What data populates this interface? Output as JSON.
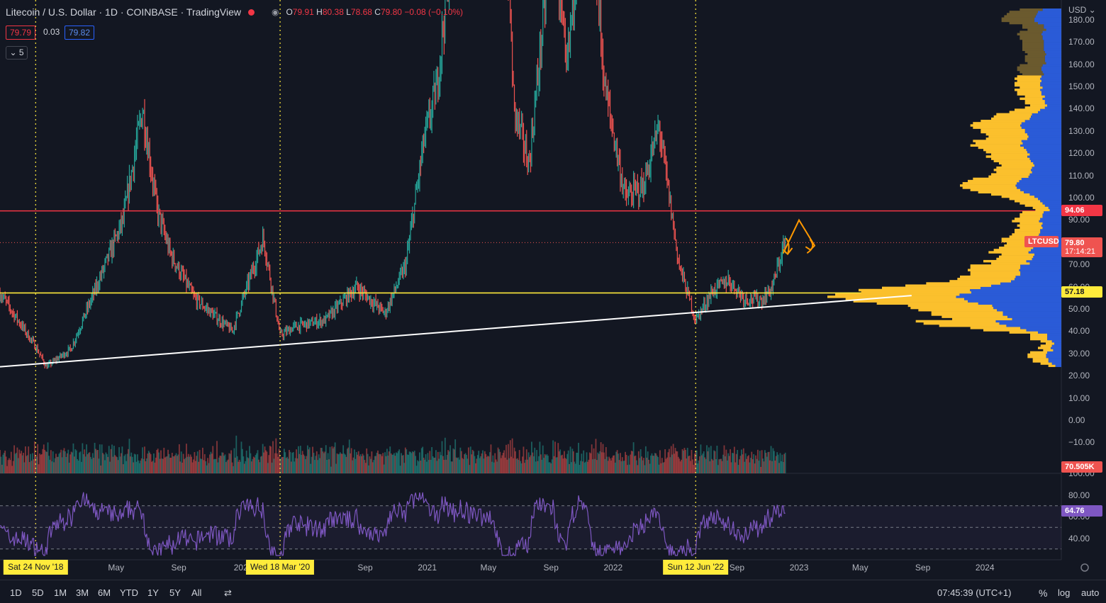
{
  "header": {
    "title": "Litecoin / U.S. Dollar · 1D · COINBASE · TradingView",
    "ohlc": [
      {
        "k": "O",
        "v": "79.91"
      },
      {
        "k": "H",
        "v": "80.38"
      },
      {
        "k": "L",
        "v": "78.68"
      },
      {
        "k": "C",
        "v": "79.80"
      },
      {
        "k": "",
        "v": "−0.08 (−0.10%)"
      }
    ],
    "bid": "79.79",
    "spread": "0.03",
    "ask": "79.82",
    "indicator_count": "5"
  },
  "price_axis": {
    "currency": "USD",
    "ticks": [
      "−10.00",
      "0.00",
      "10.00",
      "20.00",
      "30.00",
      "40.00",
      "50.00",
      "60.00",
      "70.00",
      "80.00",
      "90.00",
      "100.00",
      "110.00",
      "120.00",
      "130.00",
      "140.00",
      "150.00",
      "160.00",
      "170.00",
      "180.00"
    ],
    "resistance_label": "94.06",
    "support_label": "57.18",
    "symbol_label": "LTCUSD",
    "last_price_label": "79.80",
    "countdown": "17:14:21",
    "volume_label": "70.505K"
  },
  "rsi_axis": {
    "ticks": [
      "40.00",
      "60.00",
      "80.00",
      "100.00"
    ],
    "value_label": "64.76"
  },
  "time_axis": {
    "labels": [
      "May",
      "Sep",
      "202",
      "Sep",
      "2021",
      "May",
      "Sep",
      "2022",
      "Sep",
      "2023",
      "May",
      "Sep",
      "2024"
    ],
    "date_markers": [
      "Sat 24 Nov '18",
      "Wed 18 Mar '20",
      "Sun 12 Jun '22"
    ]
  },
  "toolbar": {
    "timeframes": [
      "1D",
      "5D",
      "1M",
      "3M",
      "6M",
      "YTD",
      "1Y",
      "5Y",
      "All"
    ],
    "clock": "07:45:39 (UTC+1)",
    "percent": "%",
    "log": "log",
    "auto": "auto"
  },
  "colors": {
    "background": "#131722",
    "up": "#26a69a",
    "down": "#ef5350",
    "resistance": "#f23645",
    "support": "#ffeb3b",
    "rsi": "#7e57c2",
    "vp_up": "#fbc02d",
    "vp_down": "#2a5bd7",
    "annotation": "#ff9800"
  },
  "chart_data": {
    "type": "candlestick",
    "symbol": "LTCUSD",
    "exchange": "COINBASE",
    "interval": "1D",
    "x_range": [
      "2018-09-15",
      "2024-05-30"
    ],
    "ylim": [
      -14,
      185
    ],
    "key_points": [
      {
        "date": "2018-09-15",
        "close": 57
      },
      {
        "date": "2018-11-24",
        "close": 33
      },
      {
        "date": "2018-12-15",
        "close": 24
      },
      {
        "date": "2019-02-01",
        "close": 32
      },
      {
        "date": "2019-03-20",
        "close": 58
      },
      {
        "date": "2019-05-15",
        "close": 90
      },
      {
        "date": "2019-06-22",
        "close": 140
      },
      {
        "date": "2019-07-20",
        "close": 95
      },
      {
        "date": "2019-08-15",
        "close": 75
      },
      {
        "date": "2019-10-01",
        "close": 55
      },
      {
        "date": "2019-12-15",
        "close": 40
      },
      {
        "date": "2020-02-14",
        "close": 82
      },
      {
        "date": "2020-03-18",
        "close": 38
      },
      {
        "date": "2020-04-15",
        "close": 42
      },
      {
        "date": "2020-06-15",
        "close": 45
      },
      {
        "date": "2020-08-15",
        "close": 60
      },
      {
        "date": "2020-10-10",
        "close": 48
      },
      {
        "date": "2020-11-20",
        "close": 70
      },
      {
        "date": "2020-12-25",
        "close": 125
      },
      {
        "date": "2021-01-20",
        "close": 150
      },
      {
        "date": "2021-02-20",
        "close": 220
      },
      {
        "date": "2021-05-10",
        "close": 380
      },
      {
        "date": "2021-06-20",
        "close": 140
      },
      {
        "date": "2021-07-20",
        "close": 115
      },
      {
        "date": "2021-09-05",
        "close": 225
      },
      {
        "date": "2021-10-01",
        "close": 155
      },
      {
        "date": "2021-11-10",
        "close": 260
      },
      {
        "date": "2021-12-15",
        "close": 150
      },
      {
        "date": "2022-01-25",
        "close": 100
      },
      {
        "date": "2022-03-01",
        "close": 105
      },
      {
        "date": "2022-04-01",
        "close": 132
      },
      {
        "date": "2022-05-10",
        "close": 70
      },
      {
        "date": "2022-06-12",
        "close": 45
      },
      {
        "date": "2022-07-15",
        "close": 58
      },
      {
        "date": "2022-08-15",
        "close": 63
      },
      {
        "date": "2022-09-15",
        "close": 55
      },
      {
        "date": "2022-10-20",
        "close": 54
      },
      {
        "date": "2022-11-10",
        "close": 60
      },
      {
        "date": "2022-12-01",
        "close": 78
      },
      {
        "date": "2022-12-05",
        "close": 79.8
      }
    ],
    "horizontal_lines": [
      {
        "label": "94.06",
        "value": 94.06
      },
      {
        "label": "57.18",
        "value": 57.18
      }
    ],
    "trendline": [
      {
        "date": "2018-09-15",
        "value": 24
      },
      {
        "date": "2023-08-10",
        "value": 56
      }
    ],
    "volume_last": "70.505K",
    "rsi": {
      "last": 64.76,
      "upper": 70,
      "lower": 30,
      "range": [
        20,
        100
      ]
    },
    "volume_profile_source": "computed from price history",
    "grid": false
  }
}
